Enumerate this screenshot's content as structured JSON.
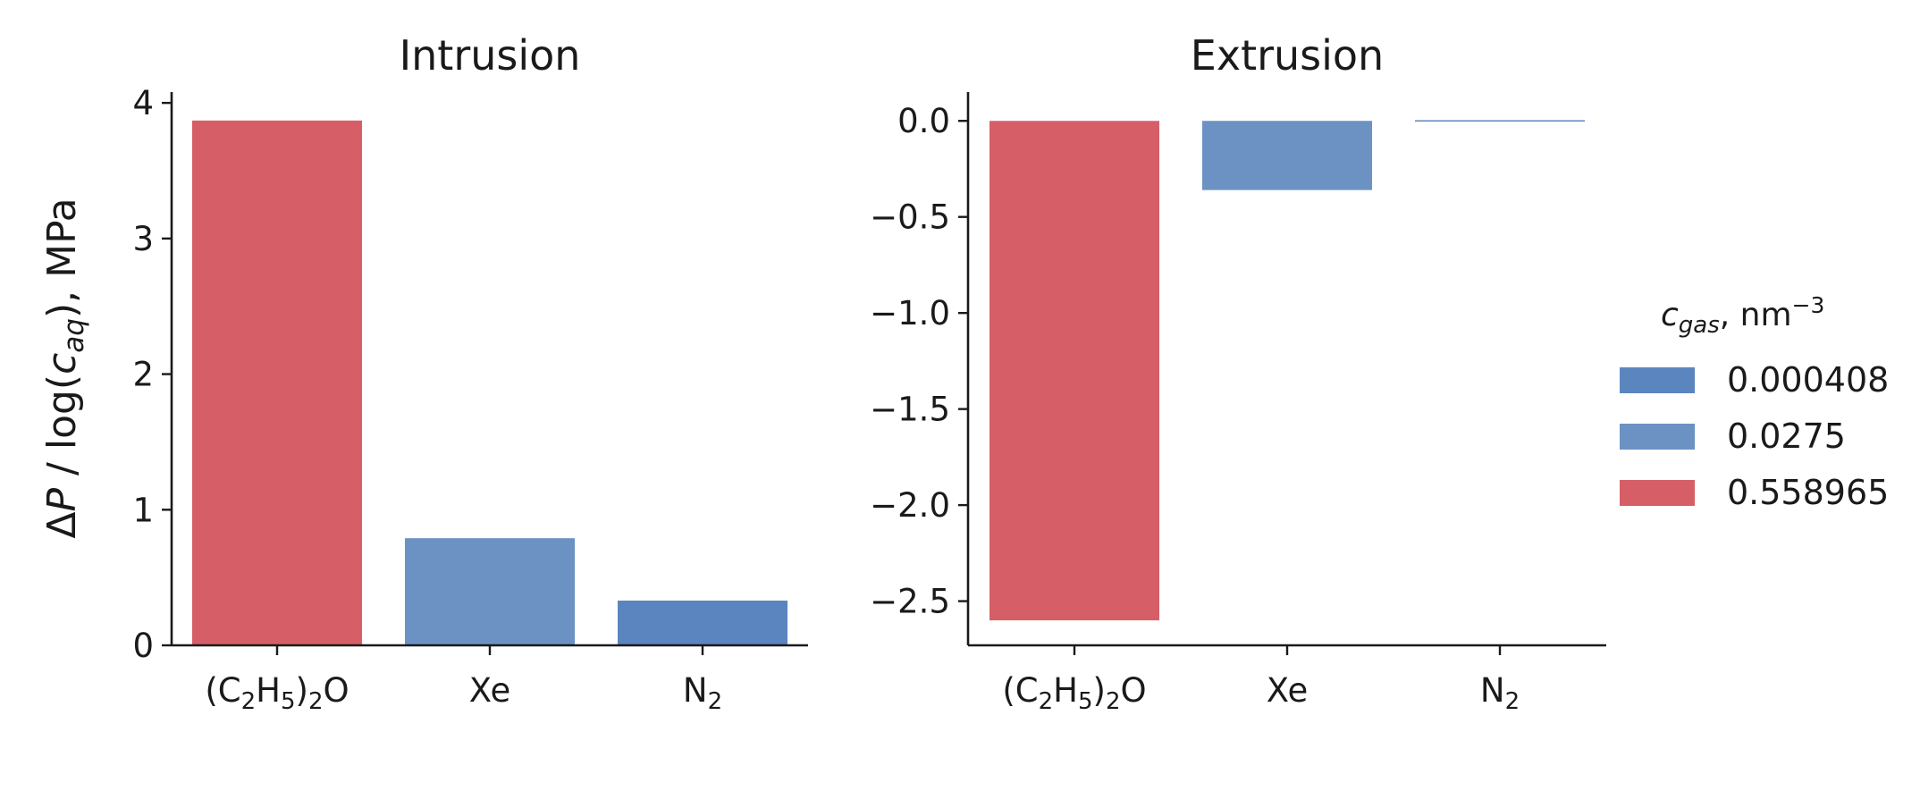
{
  "chart_data": [
    {
      "type": "bar",
      "title": "Intrusion",
      "ylabel": {
        "delta": "Δ",
        "p": "P",
        "mid": " / log(",
        "c": "c",
        "sub": "aq",
        "end": "), MPa"
      },
      "categories": [
        "(C2H5)2O",
        "Xe",
        "N2"
      ],
      "category_labels": [
        {
          "parts": [
            "(C",
            "2",
            "H",
            "5",
            ")",
            "2",
            "O"
          ]
        },
        {
          "parts": [
            "Xe"
          ]
        },
        {
          "parts": [
            "N",
            "2"
          ]
        }
      ],
      "values": [
        3.87,
        0.79,
        0.33
      ],
      "bar_series": [
        2,
        1,
        0
      ],
      "ylim": [
        0,
        4.08
      ],
      "yticks": [
        0,
        1,
        2,
        3,
        4
      ],
      "ytick_labels": [
        "0",
        "1",
        "2",
        "3",
        "4"
      ]
    },
    {
      "type": "bar",
      "title": "Extrusion",
      "categories": [
        "(C2H5)2O",
        "Xe",
        "N2"
      ],
      "category_labels": [
        {
          "parts": [
            "(C",
            "2",
            "H",
            "5",
            ")",
            "2",
            "O"
          ]
        },
        {
          "parts": [
            "Xe"
          ]
        },
        {
          "parts": [
            "N",
            "2"
          ]
        }
      ],
      "values": [
        -2.6,
        -0.36,
        -0.005
      ],
      "bar_series": [
        2,
        1,
        0
      ],
      "ylim": [
        -2.73,
        0.15
      ],
      "yticks": [
        0.0,
        -0.5,
        -1.0,
        -1.5,
        -2.0,
        -2.5
      ],
      "ytick_labels": [
        "0.0",
        "−0.5",
        "−1.0",
        "−1.5",
        "−2.0",
        "−2.5"
      ]
    }
  ],
  "legend": {
    "title": {
      "c": "c",
      "sub": "gas",
      "unit": ", nm",
      "sup": "−3"
    },
    "placement": "right",
    "entries": [
      {
        "label": "0.000408",
        "color": "#5b85bf"
      },
      {
        "label": "0.0275",
        "color": "#6b92c3"
      },
      {
        "label": "0.558965",
        "color": "#d65f67"
      }
    ]
  },
  "colors": {
    "axis": "#1a1a1a",
    "background": "#ffffff"
  }
}
